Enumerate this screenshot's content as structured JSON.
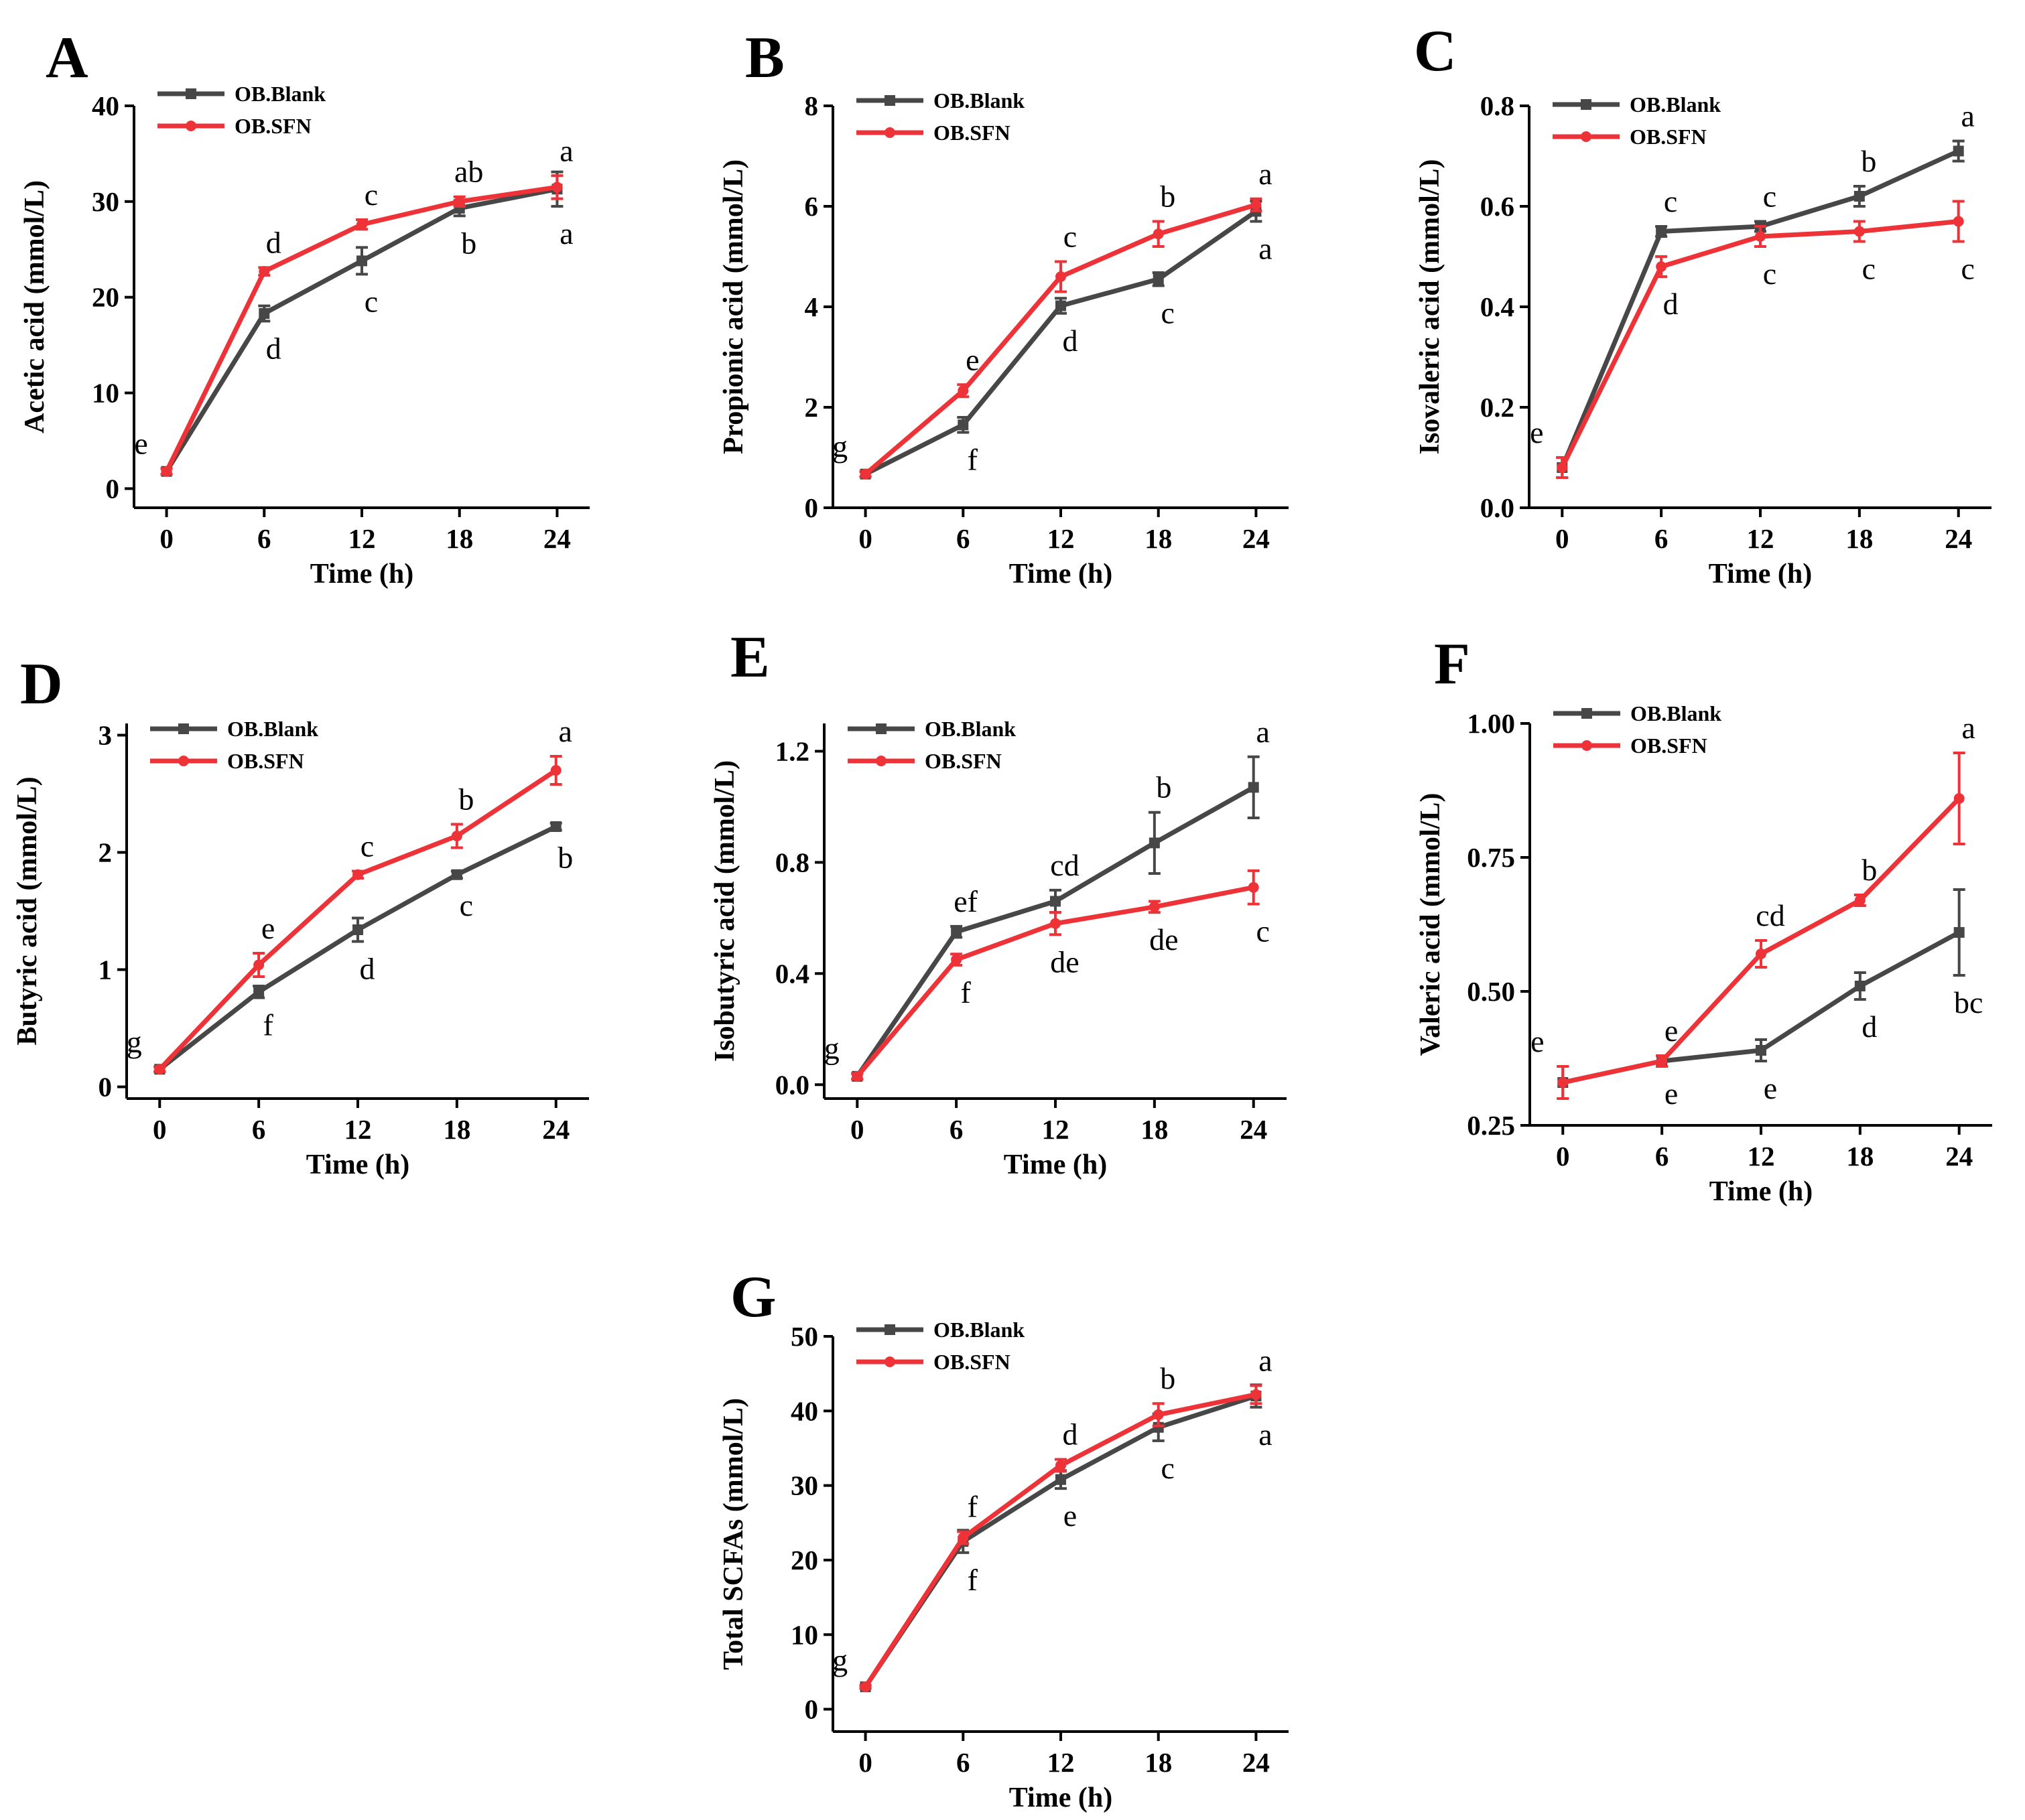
{
  "series_styles": [
    {
      "name": "OB.Blank",
      "color": "#474747",
      "marker": "square"
    },
    {
      "name": "OB.SFN",
      "color": "#ee3338",
      "marker": "circle"
    }
  ],
  "chart_data": [
    {
      "panel": "A",
      "type": "line",
      "xlabel": "Time (h)",
      "ylabel": "Acetic acid (mmol/L)",
      "x": [
        0,
        6,
        12,
        18,
        24
      ],
      "xticks": [
        "0",
        "6",
        "12",
        "18",
        "24"
      ],
      "ylim": [
        -2,
        40
      ],
      "yticks": [
        0,
        10,
        20,
        30,
        40
      ],
      "ytick_labels": [
        "0",
        "10",
        "20",
        "30",
        "40"
      ],
      "legend": [
        "OB.Blank",
        "OB.SFN"
      ],
      "series": [
        {
          "name": "OB.Blank",
          "values": [
            1.8,
            18.3,
            23.8,
            29.3,
            31.3
          ],
          "errors": [
            0.3,
            0.8,
            1.4,
            0.8,
            1.8
          ],
          "labels": [
            "",
            "d",
            "c",
            "b",
            "a"
          ]
        },
        {
          "name": "OB.SFN",
          "values": [
            1.8,
            22.7,
            27.6,
            30.0,
            31.5
          ],
          "errors": [
            0.3,
            0.4,
            0.5,
            0.5,
            1.2
          ],
          "labels": [
            "e",
            "d",
            "c",
            "ab",
            "a"
          ]
        }
      ]
    },
    {
      "panel": "B",
      "type": "line",
      "xlabel": "Time (h)",
      "ylabel": "Propionic acid (mmol/L)",
      "x": [
        0,
        6,
        12,
        18,
        24
      ],
      "xticks": [
        "0",
        "6",
        "12",
        "18",
        "24"
      ],
      "ylim": [
        0,
        8
      ],
      "yticks": [
        0,
        2,
        4,
        6,
        8
      ],
      "ytick_labels": [
        "0",
        "2",
        "4",
        "6",
        "8"
      ],
      "legend": [
        "OB.Blank",
        "OB.SFN"
      ],
      "series": [
        {
          "name": "OB.Blank",
          "values": [
            0.67,
            1.65,
            4.02,
            4.55,
            5.9
          ],
          "errors": [
            0.05,
            0.15,
            0.15,
            0.13,
            0.2
          ],
          "labels": [
            "",
            "f",
            "d",
            "c",
            "a"
          ]
        },
        {
          "name": "OB.SFN",
          "values": [
            0.67,
            2.33,
            4.6,
            5.45,
            6.03
          ],
          "errors": [
            0.05,
            0.12,
            0.3,
            0.25,
            0.12
          ],
          "labels": [
            "g",
            "e",
            "c",
            "b",
            "a"
          ]
        }
      ]
    },
    {
      "panel": "C",
      "type": "line",
      "xlabel": "Time (h)",
      "ylabel": "Isovaleric acid (mmol/L)",
      "x": [
        0,
        6,
        12,
        18,
        24
      ],
      "xticks": [
        "0",
        "6",
        "12",
        "18",
        "24"
      ],
      "ylim": [
        0,
        0.8
      ],
      "yticks": [
        0,
        0.2,
        0.4,
        0.6,
        0.8
      ],
      "ytick_labels": [
        "0.0",
        "0.2",
        "0.4",
        "0.6",
        "0.8"
      ],
      "legend": [
        "OB.Blank",
        "OB.SFN"
      ],
      "series": [
        {
          "name": "OB.Blank",
          "values": [
            0.08,
            0.55,
            0.56,
            0.62,
            0.71
          ],
          "errors": [
            0.02,
            0.01,
            0.01,
            0.02,
            0.02
          ],
          "labels": [
            "",
            "c",
            "c",
            "b",
            "a"
          ]
        },
        {
          "name": "OB.SFN",
          "values": [
            0.08,
            0.48,
            0.54,
            0.55,
            0.57
          ],
          "errors": [
            0.02,
            0.02,
            0.02,
            0.02,
            0.04
          ],
          "labels": [
            "e",
            "d",
            "c",
            "c",
            "c"
          ]
        }
      ]
    },
    {
      "panel": "D",
      "type": "line",
      "xlabel": "Time (h)",
      "ylabel": "Butyric acid (mmol/L)",
      "x": [
        0,
        6,
        12,
        18,
        24
      ],
      "xticks": [
        "0",
        "6",
        "12",
        "18",
        "24"
      ],
      "ylim": [
        -0.1,
        3.1
      ],
      "yticks": [
        0,
        1,
        2,
        3
      ],
      "ytick_labels": [
        "0",
        "1",
        "2",
        "3"
      ],
      "legend": [
        "OB.Blank",
        "OB.SFN"
      ],
      "series": [
        {
          "name": "OB.Blank",
          "values": [
            0.15,
            0.81,
            1.34,
            1.81,
            2.22
          ],
          "errors": [
            0.02,
            0.05,
            0.1,
            0.03,
            0.03
          ],
          "labels": [
            "",
            "f",
            "d",
            "c",
            "b"
          ]
        },
        {
          "name": "OB.SFN",
          "values": [
            0.15,
            1.04,
            1.81,
            2.14,
            2.7
          ],
          "errors": [
            0.02,
            0.1,
            0.03,
            0.1,
            0.12
          ],
          "labels": [
            "g",
            "e",
            "c",
            "b",
            "a"
          ]
        }
      ]
    },
    {
      "panel": "E",
      "type": "line",
      "xlabel": "Time (h)",
      "ylabel": "Isobutyric acid (mmol/L)",
      "x": [
        0,
        6,
        12,
        18,
        24
      ],
      "xticks": [
        "0",
        "6",
        "12",
        "18",
        "24"
      ],
      "ylim": [
        -0.05,
        1.3
      ],
      "yticks": [
        0,
        0.4,
        0.8,
        1.2
      ],
      "ytick_labels": [
        "0.0",
        "0.4",
        "0.8",
        "1.2"
      ],
      "legend": [
        "OB.Blank",
        "OB.SFN"
      ],
      "series": [
        {
          "name": "OB.Blank",
          "values": [
            0.03,
            0.55,
            0.66,
            0.87,
            1.07
          ],
          "errors": [
            0.01,
            0.02,
            0.04,
            0.11,
            0.11
          ],
          "labels": [
            "",
            "ef",
            "cd",
            "b",
            "a"
          ]
        },
        {
          "name": "OB.SFN",
          "values": [
            0.03,
            0.45,
            0.58,
            0.64,
            0.71
          ],
          "errors": [
            0.01,
            0.02,
            0.04,
            0.02,
            0.06
          ],
          "labels": [
            "g",
            "f",
            "de",
            "de",
            "c"
          ]
        }
      ]
    },
    {
      "panel": "F",
      "type": "line",
      "xlabel": "Time (h)",
      "ylabel": "Valeric acid (mmol/L)",
      "x": [
        0,
        6,
        12,
        18,
        24
      ],
      "xticks": [
        "0",
        "6",
        "12",
        "18",
        "24"
      ],
      "ylim": [
        0.25,
        1.0
      ],
      "yticks": [
        0.25,
        0.5,
        0.75,
        1.0
      ],
      "ytick_labels": [
        "0.25",
        "0.50",
        "0.75",
        "1.00"
      ],
      "legend": [
        "OB.Blank",
        "OB.SFN"
      ],
      "series": [
        {
          "name": "OB.Blank",
          "values": [
            0.33,
            0.37,
            0.39,
            0.51,
            0.61
          ],
          "errors": [
            0.03,
            0.01,
            0.02,
            0.025,
            0.08
          ],
          "labels": [
            "",
            "e",
            "e",
            "d",
            "bc"
          ]
        },
        {
          "name": "OB.SFN",
          "values": [
            0.33,
            0.37,
            0.57,
            0.67,
            0.86
          ],
          "errors": [
            0.03,
            0.01,
            0.025,
            0.01,
            0.085
          ],
          "labels": [
            "e",
            "e",
            "cd",
            "b",
            "a"
          ]
        }
      ]
    },
    {
      "panel": "G",
      "type": "line",
      "xlabel": "Time (h)",
      "ylabel": "Total SCFAs (mmol/L)",
      "x": [
        0,
        6,
        12,
        18,
        24
      ],
      "xticks": [
        "0",
        "6",
        "12",
        "18",
        "24"
      ],
      "ylim": [
        -3,
        50
      ],
      "yticks": [
        0,
        10,
        20,
        30,
        40,
        50
      ],
      "ytick_labels": [
        "0",
        "10",
        "20",
        "30",
        "40",
        "50"
      ],
      "legend": [
        "OB.Blank",
        "OB.SFN"
      ],
      "series": [
        {
          "name": "OB.Blank",
          "values": [
            3.0,
            22.5,
            30.8,
            37.8,
            42.0
          ],
          "errors": [
            0.2,
            1.5,
            1.2,
            1.8,
            1.5
          ],
          "labels": [
            "",
            "f",
            "e",
            "c",
            "a"
          ]
        },
        {
          "name": "OB.SFN",
          "values": [
            3.0,
            23.0,
            32.7,
            39.5,
            42.2
          ],
          "errors": [
            0.2,
            0.8,
            0.8,
            1.5,
            1.2
          ],
          "labels": [
            "g",
            "f",
            "d",
            "b",
            "a"
          ]
        }
      ]
    }
  ]
}
